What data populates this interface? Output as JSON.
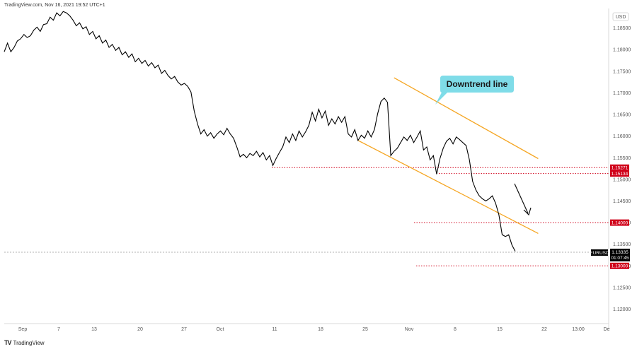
{
  "header": {
    "source_line": "TradingView.com, Nov 16, 2021 19:52 UTC+1"
  },
  "brand": {
    "label": "TradingView",
    "icon": "tradingview-logo-icon"
  },
  "colors": {
    "price_line": "#000000",
    "channel": "#f5a623",
    "support_level": "#d0021b",
    "callout_bg": "#7fdce8",
    "current_tag": "#000000"
  },
  "chart_data": {
    "type": "line",
    "symbol": "EURUSD",
    "currency_label": "USD",
    "current_price": "1.13335",
    "countdown": "01:07:45",
    "yticks": [
      "1.18500",
      "1.18000",
      "1.17500",
      "1.17000",
      "1.16500",
      "1.16000",
      "1.15500",
      "1.15000",
      "1.14500",
      "1.14000",
      "1.13500",
      "1.13000",
      "1.12500",
      "1.12000"
    ],
    "xticks": [
      "Sep",
      "7",
      "13",
      "20",
      "27",
      "Oct",
      "11",
      "18",
      "25",
      "Nov",
      "8",
      "15",
      "22",
      "13:00",
      "De"
    ],
    "ylim": [
      1.1165,
      1.1882
    ],
    "levels": [
      {
        "price": 1.15271,
        "label": "1.15271"
      },
      {
        "price": 1.15134,
        "label": "1.15134"
      },
      {
        "price": 1.14,
        "label": "1.14000"
      },
      {
        "price": 1.13,
        "label": "1.13000"
      }
    ],
    "annotation": "Downtrend line",
    "series": [
      {
        "values": [
          [
            0,
            1.1795
          ],
          [
            0.5,
            1.1815
          ],
          [
            1,
            1.1795
          ],
          [
            1.5,
            1.1805
          ],
          [
            2,
            1.182
          ],
          [
            2.5,
            1.1825
          ],
          [
            3,
            1.1835
          ],
          [
            3.5,
            1.1828
          ],
          [
            4,
            1.1832
          ],
          [
            4.5,
            1.1845
          ],
          [
            5,
            1.1852
          ],
          [
            5.5,
            1.1842
          ],
          [
            6,
            1.1858
          ],
          [
            6.5,
            1.186
          ],
          [
            7,
            1.1875
          ],
          [
            7.5,
            1.1868
          ],
          [
            8,
            1.1885
          ],
          [
            8.5,
            1.1878
          ],
          [
            9,
            1.1888
          ],
          [
            9.5,
            1.1885
          ],
          [
            10,
            1.1878
          ],
          [
            10.5,
            1.1868
          ],
          [
            11,
            1.1855
          ],
          [
            11.5,
            1.1862
          ],
          [
            12,
            1.1848
          ],
          [
            12.5,
            1.1853
          ],
          [
            13,
            1.1835
          ],
          [
            13.5,
            1.1842
          ],
          [
            14,
            1.1825
          ],
          [
            14.5,
            1.1832
          ],
          [
            15,
            1.1815
          ],
          [
            15.5,
            1.1822
          ],
          [
            16,
            1.1805
          ],
          [
            16.5,
            1.1812
          ],
          [
            17,
            1.1798
          ],
          [
            17.5,
            1.1805
          ],
          [
            18,
            1.1788
          ],
          [
            18.5,
            1.1795
          ],
          [
            19,
            1.1782
          ],
          [
            19.5,
            1.179
          ],
          [
            20,
            1.1772
          ],
          [
            20.5,
            1.178
          ],
          [
            21,
            1.1768
          ],
          [
            21.5,
            1.1775
          ],
          [
            22,
            1.1762
          ],
          [
            22.5,
            1.177
          ],
          [
            23,
            1.1758
          ],
          [
            23.5,
            1.1764
          ],
          [
            24,
            1.1745
          ],
          [
            24.5,
            1.1752
          ],
          [
            25,
            1.174
          ],
          [
            25.5,
            1.1732
          ],
          [
            26,
            1.1738
          ],
          [
            26.5,
            1.1725
          ],
          [
            27,
            1.1718
          ],
          [
            27.5,
            1.1722
          ],
          [
            28,
            1.1715
          ],
          [
            28.5,
            1.1702
          ],
          [
            29,
            1.1658
          ],
          [
            29.5,
            1.1628
          ],
          [
            30,
            1.1605
          ],
          [
            30.5,
            1.1615
          ],
          [
            31,
            1.16
          ],
          [
            31.5,
            1.1608
          ],
          [
            32,
            1.1595
          ],
          [
            32.5,
            1.1605
          ],
          [
            33,
            1.1612
          ],
          [
            33.5,
            1.1603
          ],
          [
            34,
            1.1618
          ],
          [
            34.5,
            1.1605
          ],
          [
            35,
            1.1595
          ],
          [
            35.5,
            1.1575
          ],
          [
            36,
            1.1552
          ],
          [
            36.5,
            1.1558
          ],
          [
            37,
            1.155
          ],
          [
            37.5,
            1.156
          ],
          [
            38,
            1.1555
          ],
          [
            38.5,
            1.1565
          ],
          [
            39,
            1.1552
          ],
          [
            39.5,
            1.1562
          ],
          [
            40,
            1.1545
          ],
          [
            40.5,
            1.1555
          ],
          [
            41,
            1.1532
          ],
          [
            41.5,
            1.1548
          ],
          [
            42,
            1.1562
          ],
          [
            42.5,
            1.1575
          ],
          [
            43,
            1.1598
          ],
          [
            43.5,
            1.1585
          ],
          [
            44,
            1.1605
          ],
          [
            44.5,
            1.159
          ],
          [
            45,
            1.1612
          ],
          [
            45.5,
            1.1598
          ],
          [
            46,
            1.161
          ],
          [
            46.5,
            1.1625
          ],
          [
            47,
            1.1655
          ],
          [
            47.5,
            1.1635
          ],
          [
            48,
            1.1662
          ],
          [
            48.5,
            1.1642
          ],
          [
            49,
            1.1658
          ],
          [
            49.5,
            1.1625
          ],
          [
            50,
            1.164
          ],
          [
            50.5,
            1.1628
          ],
          [
            51,
            1.1645
          ],
          [
            51.5,
            1.1632
          ],
          [
            52,
            1.1645
          ],
          [
            52.5,
            1.1605
          ],
          [
            53,
            1.1598
          ],
          [
            53.5,
            1.1615
          ],
          [
            54,
            1.159
          ],
          [
            54.5,
            1.1602
          ],
          [
            55,
            1.1595
          ],
          [
            55.5,
            1.1612
          ],
          [
            56,
            1.1598
          ],
          [
            56.5,
            1.1615
          ],
          [
            57,
            1.1652
          ],
          [
            57.5,
            1.168
          ],
          [
            58,
            1.1688
          ],
          [
            58.5,
            1.1678
          ],
          [
            59,
            1.1555
          ],
          [
            59.5,
            1.1565
          ],
          [
            60,
            1.1572
          ],
          [
            60.5,
            1.1585
          ],
          [
            61,
            1.1598
          ],
          [
            61.5,
            1.159
          ],
          [
            62,
            1.1602
          ],
          [
            62.5,
            1.1585
          ],
          [
            63,
            1.1598
          ],
          [
            63.5,
            1.1612
          ],
          [
            64,
            1.1568
          ],
          [
            64.5,
            1.1575
          ],
          [
            65,
            1.1545
          ],
          [
            65.5,
            1.1555
          ],
          [
            66,
            1.1512
          ],
          [
            66.5,
            1.1548
          ],
          [
            67,
            1.1572
          ],
          [
            67.5,
            1.1588
          ],
          [
            68,
            1.1595
          ],
          [
            68.5,
            1.1582
          ],
          [
            69,
            1.1598
          ],
          [
            69.5,
            1.1592
          ],
          [
            70,
            1.1585
          ],
          [
            70.5,
            1.1578
          ],
          [
            71,
            1.1545
          ],
          [
            71.5,
            1.1495
          ],
          [
            72,
            1.1475
          ],
          [
            72.5,
            1.1462
          ],
          [
            73,
            1.1455
          ],
          [
            73.5,
            1.145
          ],
          [
            74,
            1.1455
          ],
          [
            74.5,
            1.1462
          ],
          [
            75,
            1.1445
          ],
          [
            75.5,
            1.1418
          ],
          [
            76,
            1.1372
          ],
          [
            76.5,
            1.1368
          ],
          [
            77,
            1.1372
          ],
          [
            77.5,
            1.1348
          ],
          [
            78,
            1.13335
          ]
        ]
      }
    ],
    "channel_lines": [
      {
        "from": [
          59.5,
          1.1735
        ],
        "to": [
          81.5,
          1.1548
        ]
      },
      {
        "from": [
          54,
          1.159
        ],
        "to": [
          81.5,
          1.1375
        ]
      }
    ]
  }
}
